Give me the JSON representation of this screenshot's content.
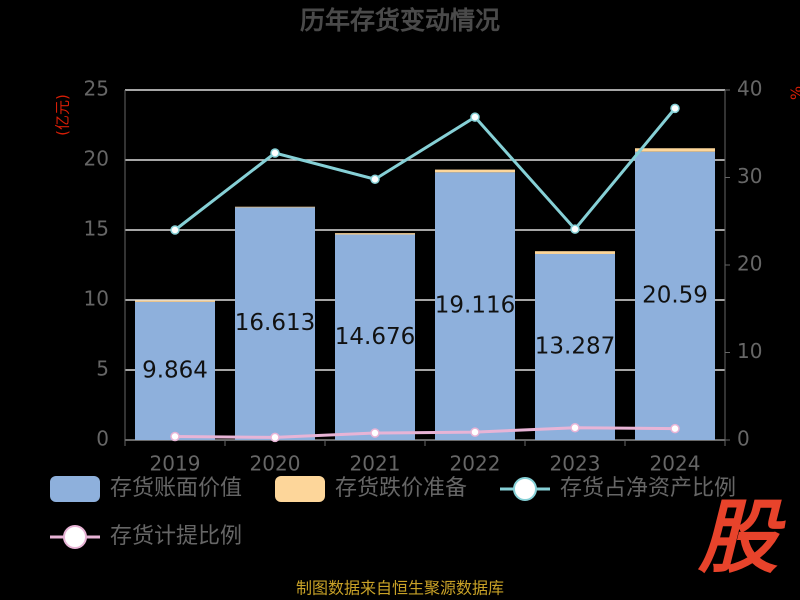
{
  "chart_data": {
    "type": "bar",
    "title": "历年存货变动情况",
    "y_label": "(亿元)",
    "y2_label": "%",
    "source": "制图数据来自恒生聚源数据库",
    "logo": "股",
    "categories": [
      "2019",
      "2020",
      "2021",
      "2022",
      "2023",
      "2024"
    ],
    "series": [
      {
        "name": "存货账面价值",
        "type": "bar",
        "color": "#8eb0dc",
        "values": [
          9.864,
          16.613,
          14.676,
          19.116,
          13.287,
          20.59
        ]
      },
      {
        "name": "存货跌价准备",
        "type": "bar",
        "color": "#fdd69a",
        "values": [
          0.1,
          0.05,
          0.1,
          0.2,
          0.2,
          0.25
        ]
      },
      {
        "name": "存货占净资产比例",
        "type": "line",
        "axis": "y2",
        "color": "#86d0d6",
        "values": [
          24,
          32.8,
          29.8,
          36.9,
          24.1,
          37.9
        ]
      },
      {
        "name": "存货计提比例",
        "type": "line",
        "axis": "y2",
        "color": "#e8b4d6",
        "values": [
          0.4,
          0.3,
          0.8,
          0.9,
          1.4,
          1.3
        ]
      }
    ],
    "ylim": [
      0,
      25
    ],
    "yticks": [
      0,
      5,
      10,
      15,
      20,
      25
    ],
    "y2lim": [
      0,
      40
    ],
    "y2ticks": [
      0,
      10,
      20,
      30,
      40
    ],
    "grid": true
  }
}
